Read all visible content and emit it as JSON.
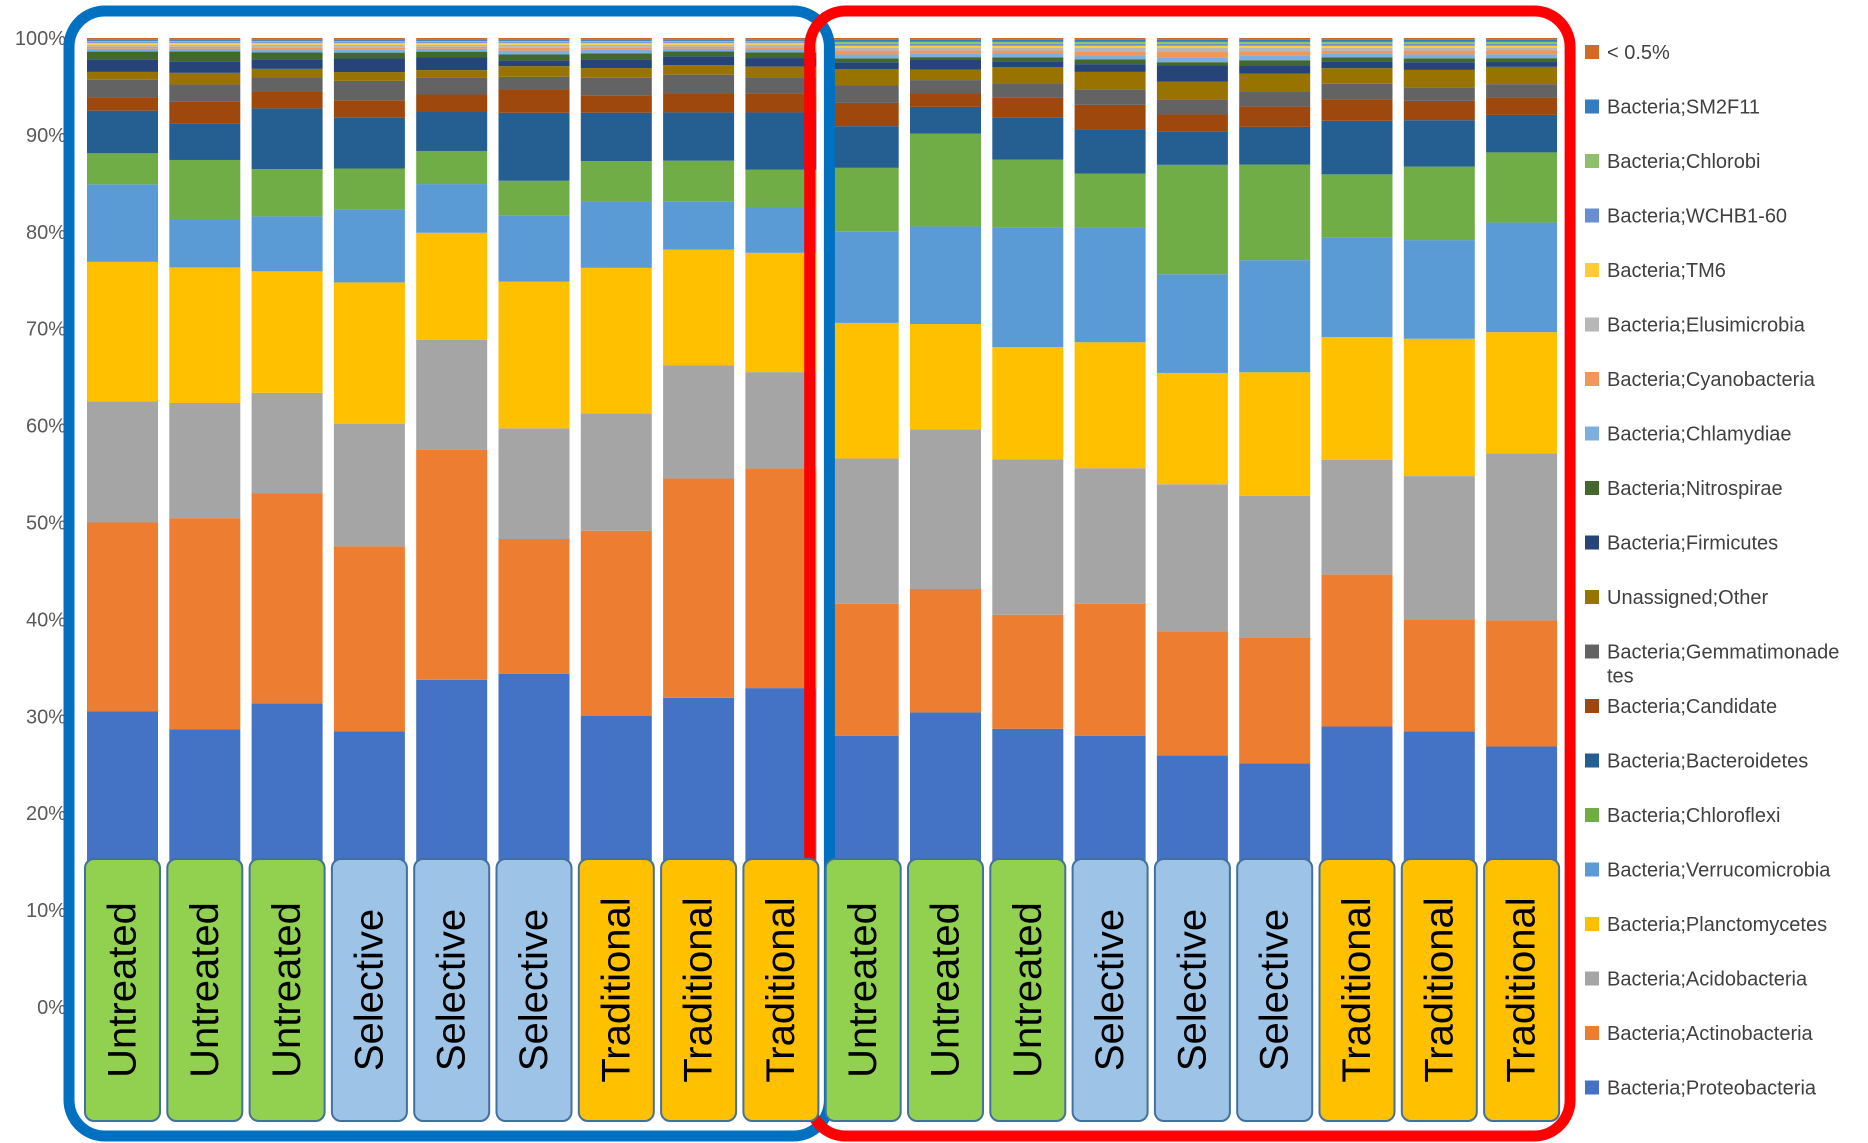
{
  "chart_data": {
    "type": "bar",
    "stacked": true,
    "percent": true,
    "ylim": [
      0,
      100
    ],
    "grid": false,
    "legend_position": "right",
    "y_ticks": [
      "0%",
      "10%",
      "20%",
      "30%",
      "40%",
      "50%",
      "60%",
      "70%",
      "80%",
      "90%",
      "100%"
    ],
    "categories": [
      "Untreated",
      "Untreated",
      "Untreated",
      "Selective",
      "Selective",
      "Selective",
      "Traditional",
      "Traditional",
      "Traditional",
      "Untreated",
      "Untreated",
      "Untreated",
      "Selective",
      "Selective",
      "Selective",
      "Traditional",
      "Traditional",
      "Traditional"
    ],
    "category_colors": {
      "Untreated": "#92D050",
      "Selective": "#9DC3E6",
      "Traditional": "#FFC000"
    },
    "groups": [
      {
        "frame_color": "#0070C0",
        "bars": [
          0,
          1,
          2,
          3,
          4,
          5,
          6,
          7,
          8
        ]
      },
      {
        "frame_color": "#FF0000",
        "bars": [
          9,
          10,
          11,
          12,
          13,
          14,
          15,
          16,
          17
        ]
      }
    ],
    "series": [
      {
        "name": "Bacteria;Proteobacteria",
        "color": "#4472C4",
        "values": [
          30.5,
          28.7,
          31.5,
          28.3,
          33.6,
          34.3,
          30.0,
          32.0,
          33.4,
          28.0,
          30.8,
          28.8,
          28.0,
          26.0,
          25.2,
          28.8,
          28.5,
          27.1
        ]
      },
      {
        "name": "Bacteria;Actinobacteria",
        "color": "#ED7D31",
        "values": [
          19.5,
          21.8,
          21.8,
          19.0,
          23.6,
          13.9,
          19.1,
          22.7,
          23.0,
          13.6,
          12.9,
          11.8,
          13.6,
          12.8,
          13.0,
          15.6,
          11.6,
          13.1
        ]
      },
      {
        "name": "Bacteria;Acidobacteria",
        "color": "#A5A5A5",
        "values": [
          12.5,
          11.9,
          10.4,
          12.6,
          11.3,
          11.4,
          12.1,
          11.7,
          10.1,
          15.0,
          16.7,
          16.1,
          14.0,
          15.2,
          14.7,
          11.8,
          14.8,
          17.4
        ]
      },
      {
        "name": "Bacteria;Planctomycetes",
        "color": "#FFC000",
        "values": [
          14.4,
          14.0,
          12.6,
          14.5,
          11.0,
          15.1,
          15.0,
          12.0,
          12.5,
          14.0,
          11.0,
          11.6,
          13.0,
          11.5,
          12.8,
          12.6,
          14.2,
          12.6
        ]
      },
      {
        "name": "Bacteria;Verrucomicrobia",
        "color": "#5B9BD5",
        "values": [
          8.0,
          5.0,
          5.7,
          7.5,
          5.0,
          6.8,
          6.8,
          5.0,
          4.8,
          9.4,
          10.2,
          12.4,
          11.8,
          10.2,
          11.6,
          10.2,
          10.2,
          11.4
        ]
      },
      {
        "name": "Bacteria;Chloroflexi",
        "color": "#70AD47",
        "values": [
          3.2,
          6.1,
          4.9,
          4.2,
          3.4,
          3.6,
          4.2,
          4.2,
          3.9,
          6.6,
          9.7,
          7.0,
          5.6,
          11.3,
          9.9,
          6.5,
          7.6,
          7.3
        ]
      },
      {
        "name": "Bacteria;Bacteroidetes",
        "color": "#255E91",
        "values": [
          4.4,
          3.8,
          6.3,
          5.2,
          4.0,
          7.0,
          5.0,
          5.0,
          6.0,
          4.3,
          2.8,
          4.4,
          4.6,
          3.4,
          3.9,
          5.5,
          4.8,
          3.9
        ]
      },
      {
        "name": "Bacteria;Candidate",
        "color": "#9E480E",
        "values": [
          1.4,
          2.2,
          1.7,
          1.8,
          1.8,
          2.4,
          1.8,
          2.0,
          2.0,
          2.4,
          1.4,
          2.0,
          2.5,
          1.8,
          2.1,
          2.2,
          2.0,
          1.8
        ]
      },
      {
        "name": "Bacteria;Gemmatimonadetes",
        "color": "#636363",
        "values": [
          1.8,
          1.8,
          1.5,
          2.0,
          1.7,
          1.3,
          1.8,
          1.9,
          1.7,
          1.8,
          1.4,
          1.5,
          1.6,
          1.5,
          1.6,
          1.6,
          1.4,
          1.4
        ]
      },
      {
        "name": "Unassigned;Other",
        "color": "#997300",
        "values": [
          0.8,
          1.2,
          0.9,
          0.9,
          0.8,
          1.1,
          1.0,
          1.0,
          1.1,
          1.7,
          1.1,
          1.7,
          1.8,
          1.9,
          1.8,
          1.6,
          1.8,
          1.8
        ]
      },
      {
        "name": "Bacteria;Firmicutes",
        "color": "#264478",
        "values": [
          1.3,
          1.2,
          1.0,
          1.4,
          1.3,
          0.6,
          0.9,
          0.9,
          0.9,
          0.7,
          1.0,
          0.6,
          0.8,
          1.7,
          0.8,
          0.7,
          0.8,
          0.5
        ]
      },
      {
        "name": "Bacteria;Nitrospirae",
        "color": "#43682B",
        "values": [
          0.8,
          1.0,
          0.7,
          0.6,
          0.6,
          0.6,
          0.6,
          0.5,
          0.6,
          0.4,
          0.3,
          0.4,
          0.5,
          0.3,
          0.6,
          0.4,
          0.4,
          0.4
        ]
      },
      {
        "name": "Bacteria;Chlamydiae",
        "color": "#7CAFDD",
        "values": [
          0.3,
          0.3,
          0.3,
          0.3,
          0.3,
          0.4,
          0.4,
          0.3,
          0.3,
          0.4,
          0.4,
          0.4,
          0.4,
          0.5,
          0.5,
          0.4,
          0.4,
          0.4
        ]
      },
      {
        "name": "Bacteria;Cyanobacteria",
        "color": "#F1975A",
        "values": [
          0.2,
          0.2,
          0.2,
          0.2,
          0.2,
          0.3,
          0.2,
          0.2,
          0.2,
          0.4,
          0.3,
          0.3,
          0.4,
          0.6,
          0.4,
          0.3,
          0.4,
          0.4
        ]
      },
      {
        "name": "Bacteria;Elusimicrobia",
        "color": "#B7B7B7",
        "values": [
          0.2,
          0.2,
          0.3,
          0.3,
          0.2,
          0.3,
          0.3,
          0.2,
          0.3,
          0.3,
          0.3,
          0.3,
          0.4,
          0.4,
          0.4,
          0.3,
          0.3,
          0.3
        ]
      },
      {
        "name": "Bacteria;TM6",
        "color": "#FFCD33",
        "values": [
          0.2,
          0.2,
          0.2,
          0.2,
          0.2,
          0.2,
          0.2,
          0.2,
          0.2,
          0.2,
          0.2,
          0.2,
          0.2,
          0.2,
          0.2,
          0.2,
          0.2,
          0.2
        ]
      },
      {
        "name": "Bacteria;WCHB1-60",
        "color": "#698ED0",
        "values": [
          0.1,
          0.1,
          0.1,
          0.1,
          0.1,
          0.1,
          0.1,
          0.1,
          0.1,
          0.2,
          0.2,
          0.2,
          0.2,
          0.2,
          0.2,
          0.2,
          0.2,
          0.2
        ]
      },
      {
        "name": "Bacteria;Chlorobi",
        "color": "#8CC168",
        "values": [
          0.1,
          0.1,
          0.1,
          0.1,
          0.1,
          0.1,
          0.1,
          0.1,
          0.1,
          0.2,
          0.2,
          0.2,
          0.2,
          0.2,
          0.2,
          0.2,
          0.2,
          0.2
        ]
      },
      {
        "name": "Bacteria;SM2F11",
        "color": "#327DC2",
        "values": [
          0.1,
          0.1,
          0.1,
          0.1,
          0.1,
          0.1,
          0.1,
          0.1,
          0.1,
          0.2,
          0.2,
          0.2,
          0.2,
          0.2,
          0.2,
          0.2,
          0.2,
          0.2
        ]
      },
      {
        "name": "< 0.5%",
        "color": "#D26A25",
        "values": [
          0.2,
          0.2,
          0.2,
          0.2,
          0.2,
          0.2,
          0.2,
          0.2,
          0.2,
          0.2,
          0.2,
          0.2,
          0.2,
          0.2,
          0.2,
          0.2,
          0.2,
          0.2
        ]
      }
    ],
    "legend": [
      {
        "label": "< 0.5%",
        "color": "#D26A25"
      },
      {
        "label": "Bacteria;SM2F11",
        "color": "#327DC2"
      },
      {
        "label": "Bacteria;Chlorobi",
        "color": "#8CC168"
      },
      {
        "label": "Bacteria;WCHB1-60",
        "color": "#698ED0"
      },
      {
        "label": "Bacteria;TM6",
        "color": "#FFCD33"
      },
      {
        "label": "Bacteria;Elusimicrobia",
        "color": "#B7B7B7"
      },
      {
        "label": "Bacteria;Cyanobacteria",
        "color": "#F1975A"
      },
      {
        "label": "Bacteria;Chlamydiae",
        "color": "#7CAFDD"
      },
      {
        "label": "Bacteria;Nitrospirae",
        "color": "#43682B"
      },
      {
        "label": "Bacteria;Firmicutes",
        "color": "#264478"
      },
      {
        "label": "Unassigned;Other",
        "color": "#997300"
      },
      {
        "label": "Bacteria;Gemmatimonade\ntes",
        "color": "#636363"
      },
      {
        "label": "Bacteria;Candidate",
        "color": "#9E480E"
      },
      {
        "label": "Bacteria;Bacteroidetes",
        "color": "#255E91"
      },
      {
        "label": "Bacteria;Chloroflexi",
        "color": "#70AD47"
      },
      {
        "label": "Bacteria;Verrucomicrobia",
        "color": "#5B9BD5"
      },
      {
        "label": "Bacteria;Planctomycetes",
        "color": "#FFC000"
      },
      {
        "label": "Bacteria;Acidobacteria",
        "color": "#A5A5A5"
      },
      {
        "label": "Bacteria;Actinobacteria",
        "color": "#ED7D31"
      },
      {
        "label": "Bacteria;Proteobacteria",
        "color": "#4472C4"
      }
    ]
  }
}
